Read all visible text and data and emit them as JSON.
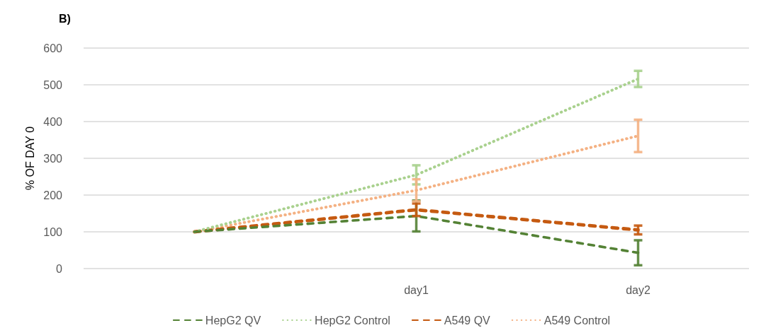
{
  "chart_data": {
    "type": "line",
    "title": "B)",
    "ylabel": "% OF DAY 0",
    "categories": [
      null,
      "day1",
      "day2"
    ],
    "ylim": [
      0,
      600
    ],
    "yticks": [
      0,
      100,
      200,
      300,
      400,
      500,
      600
    ],
    "grid": "y",
    "legend": "bottom",
    "marker": "none",
    "series": [
      {
        "name": "HepG2 QV",
        "color": "#548235",
        "line_style": "dashed",
        "values": [
          100,
          143,
          43
        ],
        "errors": [
          null,
          42,
          34
        ]
      },
      {
        "name": "HepG2 Control",
        "color": "#a9d18e",
        "line_style": "dotted",
        "values": [
          100,
          255,
          516
        ],
        "errors": [
          null,
          26,
          22
        ]
      },
      {
        "name": "A549 QV",
        "color": "#c55a11",
        "line_style": "dashed",
        "values": [
          100,
          160,
          105
        ],
        "errors": [
          null,
          17,
          12
        ]
      },
      {
        "name": "A549 Control",
        "color": "#f4b183",
        "line_style": "dotted",
        "values": [
          100,
          213,
          361
        ],
        "errors": [
          null,
          30,
          44
        ]
      }
    ]
  }
}
